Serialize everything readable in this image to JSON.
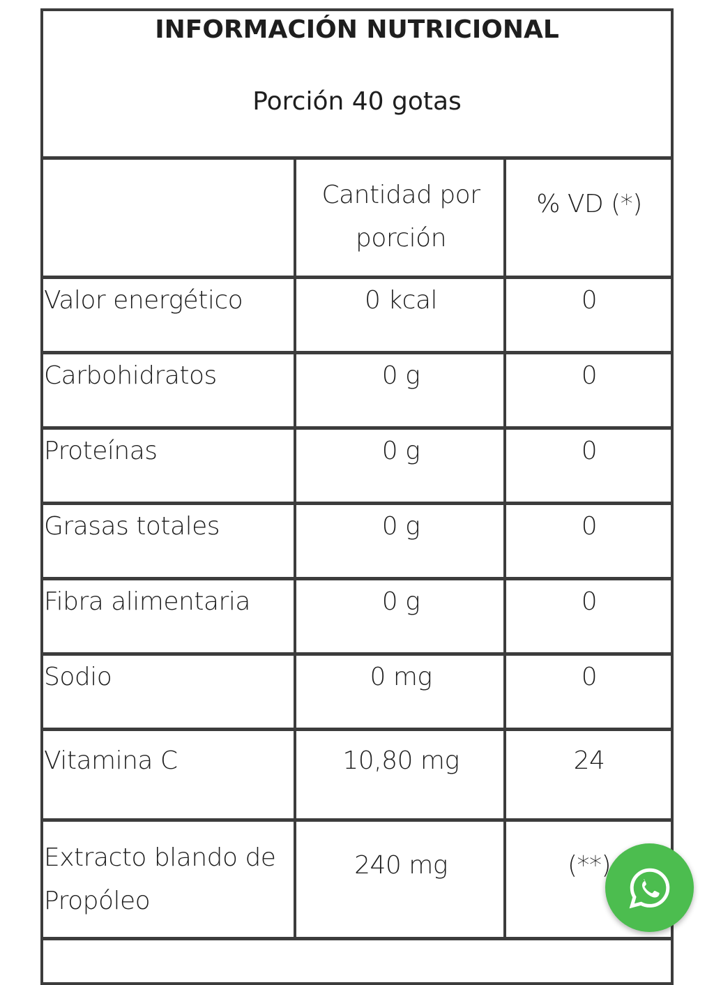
{
  "title": "INFORMACIÓN NUTRICIONAL",
  "portion": "Porción 40 gotas",
  "headers": [
    "",
    "Cantidad por porción",
    "% VD (*)"
  ],
  "rows": [
    {
      "name": "Valor energético",
      "amount": "0 kcal",
      "vd": "0"
    },
    {
      "name": "Carbohidratos",
      "amount": "0 g",
      "vd": "0"
    },
    {
      "name": "Proteínas",
      "amount": "0 g",
      "vd": "0"
    },
    {
      "name": "Grasas totales",
      "amount": "0 g",
      "vd": "0"
    },
    {
      "name": "Fibra alimentaria",
      "amount": "0 g",
      "vd": "0"
    },
    {
      "name": "Sodio",
      "amount": "0 mg",
      "vd": "0"
    },
    {
      "name": "Vitamina C",
      "amount": "10,80 mg",
      "vd": "24"
    },
    {
      "name": "Extracto blando de Propóleo",
      "amount": "240 mg",
      "vd": "(**)"
    }
  ],
  "whatsapp": {
    "icon": "whatsapp-icon",
    "color": "#4cbd4f"
  }
}
